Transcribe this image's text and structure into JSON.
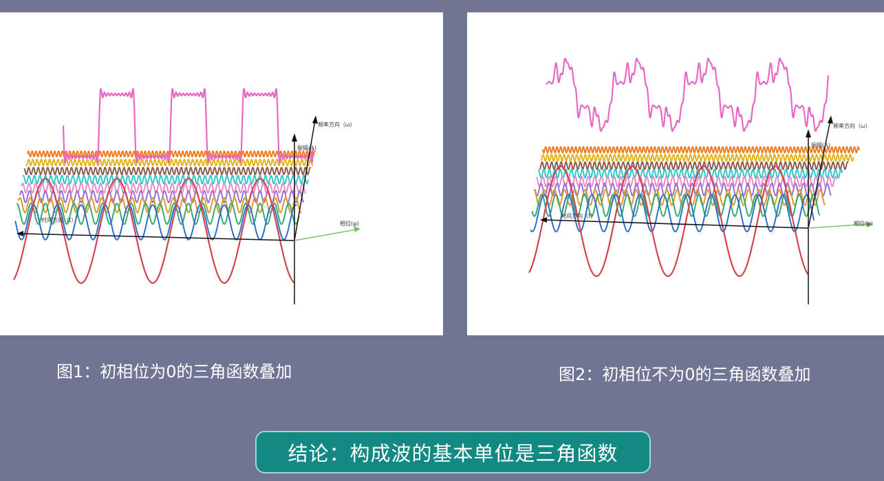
{
  "figures": [
    {
      "id": "fig1",
      "caption": "图1：初相位为0的三角函数叠加",
      "axes": {
        "frequency": "频率方向（ω）",
        "amplitude": "振幅(A)",
        "time": "时间方向（t）",
        "phase": "相位(φ)"
      }
    },
    {
      "id": "fig2",
      "caption": "图2：初相位不为0的三角函数叠加",
      "axes": {
        "frequency": "频率方向（ω）",
        "amplitude": "振幅(A)",
        "time": "时间方向（t）",
        "phase": "相位(φ)"
      }
    }
  ],
  "conclusion": "结论：构成波的基本单位是三角函数",
  "colors": {
    "background": "#6f7593",
    "panel": "#ffffff",
    "conclusion_bg": "#128a83",
    "sum_wave": "#e667c4",
    "harmonics": [
      "#d2444c",
      "#2e6ecb",
      "#38a870",
      "#d99a2a",
      "#9a6fd0",
      "#e98ac9",
      "#2fc7c7",
      "#8d5a4c",
      "#e2b41a",
      "#f07a1e"
    ]
  }
}
